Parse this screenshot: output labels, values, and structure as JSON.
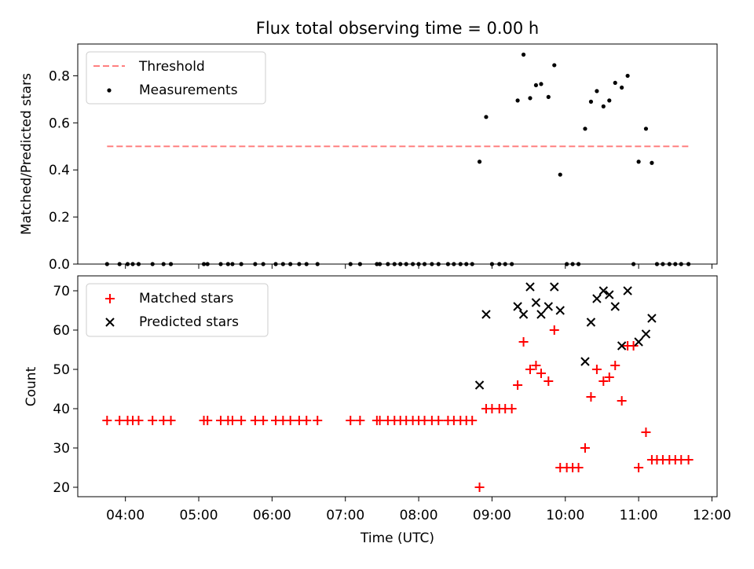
{
  "title": "Flux total observing time = 0.00 h",
  "chart_data": [
    {
      "type": "scatter",
      "panel": "top",
      "ylabel": "Matched/Predicted stars",
      "xlim": [
        3.35,
        12.07
      ],
      "ylim": [
        0.0,
        0.935
      ],
      "yticks": [
        0.0,
        0.2,
        0.4,
        0.6,
        0.8
      ],
      "ytick_labels": [
        "0.0",
        "0.2",
        "0.4",
        "0.6",
        "0.8"
      ],
      "legend_position": "top-left",
      "threshold": {
        "name": "Threshold",
        "value": 0.5,
        "x_start": 3.75,
        "x_end": 11.68,
        "color": "#ff8080"
      },
      "series": [
        {
          "name": "Measurements",
          "marker": "dot",
          "color": "#000000",
          "points": [
            [
              3.75,
              0
            ],
            [
              3.92,
              0
            ],
            [
              4.03,
              0
            ],
            [
              4.1,
              0
            ],
            [
              4.18,
              0
            ],
            [
              4.37,
              0
            ],
            [
              4.52,
              0
            ],
            [
              4.62,
              0
            ],
            [
              5.07,
              0
            ],
            [
              5.12,
              0
            ],
            [
              5.3,
              0
            ],
            [
              5.4,
              0
            ],
            [
              5.46,
              0
            ],
            [
              5.58,
              0
            ],
            [
              5.77,
              0
            ],
            [
              5.88,
              0
            ],
            [
              6.05,
              0
            ],
            [
              6.15,
              0
            ],
            [
              6.25,
              0
            ],
            [
              6.37,
              0
            ],
            [
              6.47,
              0
            ],
            [
              6.62,
              0
            ],
            [
              7.07,
              0
            ],
            [
              7.2,
              0
            ],
            [
              7.43,
              0
            ],
            [
              7.47,
              0
            ],
            [
              7.58,
              0
            ],
            [
              7.67,
              0
            ],
            [
              7.75,
              0
            ],
            [
              7.83,
              0
            ],
            [
              7.92,
              0
            ],
            [
              8.0,
              0
            ],
            [
              8.08,
              0
            ],
            [
              8.18,
              0
            ],
            [
              8.27,
              0
            ],
            [
              8.4,
              0
            ],
            [
              8.48,
              0
            ],
            [
              8.57,
              0
            ],
            [
              8.65,
              0
            ],
            [
              8.73,
              0
            ],
            [
              8.83,
              0.435
            ],
            [
              8.92,
              0.625
            ],
            [
              9.0,
              0
            ],
            [
              9.1,
              0
            ],
            [
              9.18,
              0
            ],
            [
              9.27,
              0
            ],
            [
              9.35,
              0.695
            ],
            [
              9.43,
              0.89
            ],
            [
              9.52,
              0.705
            ],
            [
              9.6,
              0.76
            ],
            [
              9.67,
              0.765
            ],
            [
              9.77,
              0.71
            ],
            [
              9.85,
              0.845
            ],
            [
              9.93,
              0.38
            ],
            [
              10.02,
              0
            ],
            [
              10.1,
              0
            ],
            [
              10.18,
              0
            ],
            [
              10.27,
              0.575
            ],
            [
              10.35,
              0.69
            ],
            [
              10.43,
              0.735
            ],
            [
              10.52,
              0.67
            ],
            [
              10.6,
              0.695
            ],
            [
              10.68,
              0.77
            ],
            [
              10.77,
              0.75
            ],
            [
              10.85,
              0.8
            ],
            [
              10.93,
              0
            ],
            [
              11.0,
              0.435
            ],
            [
              11.1,
              0.575
            ],
            [
              11.18,
              0.43
            ],
            [
              11.25,
              0
            ],
            [
              11.33,
              0
            ],
            [
              11.42,
              0
            ],
            [
              11.5,
              0
            ],
            [
              11.58,
              0
            ],
            [
              11.68,
              0
            ]
          ]
        }
      ]
    },
    {
      "type": "scatter",
      "panel": "bottom",
      "xlabel": "Time (UTC)",
      "ylabel": "Count",
      "xlim": [
        3.35,
        12.07
      ],
      "ylim": [
        17.6,
        73.8
      ],
      "yticks": [
        20,
        30,
        40,
        50,
        60,
        70
      ],
      "ytick_labels": [
        "20",
        "30",
        "40",
        "50",
        "60",
        "70"
      ],
      "xticks": [
        4,
        5,
        6,
        7,
        8,
        9,
        10,
        11,
        12
      ],
      "xtick_labels": [
        "04:00",
        "05:00",
        "06:00",
        "07:00",
        "08:00",
        "09:00",
        "10:00",
        "11:00",
        "12:00"
      ],
      "legend_position": "top-left",
      "series": [
        {
          "name": "Matched stars",
          "marker": "plus",
          "color": "#ff0000",
          "points": [
            [
              3.75,
              37
            ],
            [
              3.92,
              37
            ],
            [
              4.03,
              37
            ],
            [
              4.1,
              37
            ],
            [
              4.18,
              37
            ],
            [
              4.37,
              37
            ],
            [
              4.52,
              37
            ],
            [
              4.62,
              37
            ],
            [
              5.07,
              37
            ],
            [
              5.12,
              37
            ],
            [
              5.3,
              37
            ],
            [
              5.4,
              37
            ],
            [
              5.46,
              37
            ],
            [
              5.58,
              37
            ],
            [
              5.77,
              37
            ],
            [
              5.88,
              37
            ],
            [
              6.05,
              37
            ],
            [
              6.15,
              37
            ],
            [
              6.25,
              37
            ],
            [
              6.37,
              37
            ],
            [
              6.47,
              37
            ],
            [
              6.62,
              37
            ],
            [
              7.07,
              37
            ],
            [
              7.2,
              37
            ],
            [
              7.43,
              37
            ],
            [
              7.47,
              37
            ],
            [
              7.58,
              37
            ],
            [
              7.67,
              37
            ],
            [
              7.75,
              37
            ],
            [
              7.83,
              37
            ],
            [
              7.92,
              37
            ],
            [
              8.0,
              37
            ],
            [
              8.08,
              37
            ],
            [
              8.18,
              37
            ],
            [
              8.27,
              37
            ],
            [
              8.4,
              37
            ],
            [
              8.48,
              37
            ],
            [
              8.57,
              37
            ],
            [
              8.65,
              37
            ],
            [
              8.73,
              37
            ],
            [
              8.83,
              20
            ],
            [
              8.92,
              40
            ],
            [
              9.0,
              40
            ],
            [
              9.1,
              40
            ],
            [
              9.18,
              40
            ],
            [
              9.27,
              40
            ],
            [
              9.35,
              46
            ],
            [
              9.43,
              57
            ],
            [
              9.52,
              50
            ],
            [
              9.6,
              51
            ],
            [
              9.67,
              49
            ],
            [
              9.77,
              47
            ],
            [
              9.85,
              60
            ],
            [
              9.93,
              25
            ],
            [
              10.02,
              25
            ],
            [
              10.1,
              25
            ],
            [
              10.18,
              25
            ],
            [
              10.27,
              30
            ],
            [
              10.35,
              43
            ],
            [
              10.43,
              50
            ],
            [
              10.52,
              47
            ],
            [
              10.6,
              48
            ],
            [
              10.68,
              51
            ],
            [
              10.77,
              42
            ],
            [
              10.85,
              56
            ],
            [
              10.93,
              56
            ],
            [
              11.0,
              25
            ],
            [
              11.1,
              34
            ],
            [
              11.18,
              27
            ],
            [
              11.25,
              27
            ],
            [
              11.33,
              27
            ],
            [
              11.42,
              27
            ],
            [
              11.5,
              27
            ],
            [
              11.58,
              27
            ],
            [
              11.68,
              27
            ]
          ]
        },
        {
          "name": "Predicted stars",
          "marker": "x",
          "color": "#000000",
          "points": [
            [
              8.83,
              46
            ],
            [
              8.92,
              64
            ],
            [
              9.35,
              66
            ],
            [
              9.43,
              64
            ],
            [
              9.52,
              71
            ],
            [
              9.6,
              67
            ],
            [
              9.67,
              64
            ],
            [
              9.77,
              66
            ],
            [
              9.85,
              71
            ],
            [
              9.93,
              65
            ],
            [
              10.27,
              52
            ],
            [
              10.35,
              62
            ],
            [
              10.43,
              68
            ],
            [
              10.52,
              70
            ],
            [
              10.6,
              69
            ],
            [
              10.68,
              66
            ],
            [
              10.77,
              56
            ],
            [
              10.85,
              70
            ],
            [
              11.0,
              57
            ],
            [
              11.1,
              59
            ],
            [
              11.18,
              63
            ]
          ]
        }
      ]
    }
  ]
}
